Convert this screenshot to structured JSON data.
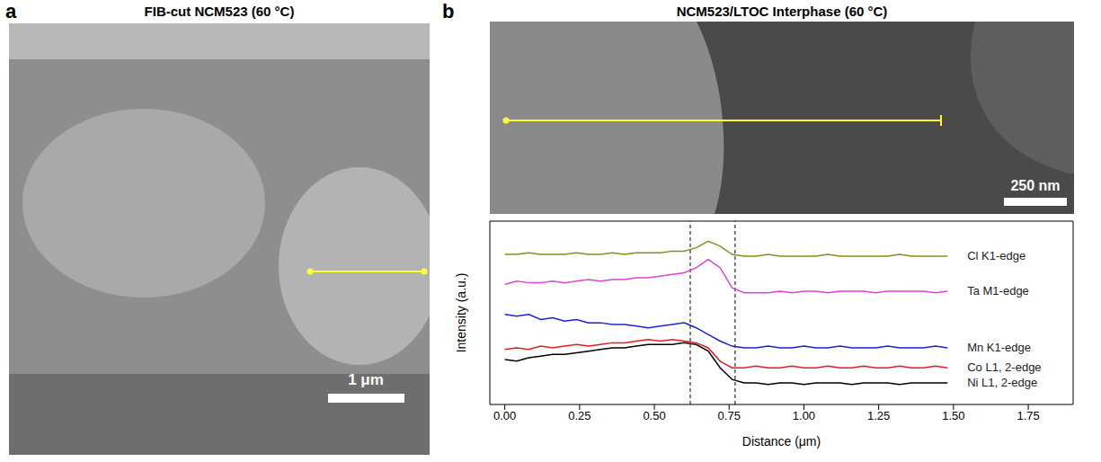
{
  "panels": [
    {
      "letter": "a",
      "title": "FIB-cut NCM523 (60 °C)",
      "scale_bar": "1 μm"
    },
    {
      "letter": "b",
      "title": "NCM523/LTOC Interphase (60 °C)",
      "scale_bar": "250 nm"
    }
  ],
  "chart_data": {
    "type": "line",
    "x_label": "Distance (μm)",
    "y_label": "Intensity (a.u.)",
    "x": [
      0.0,
      0.04,
      0.08,
      0.12,
      0.16,
      0.2,
      0.24,
      0.28,
      0.32,
      0.36,
      0.4,
      0.44,
      0.48,
      0.52,
      0.56,
      0.6,
      0.64,
      0.68,
      0.72,
      0.76,
      0.8,
      0.84,
      0.88,
      0.92,
      0.96,
      1.0,
      1.04,
      1.08,
      1.12,
      1.16,
      1.2,
      1.24,
      1.28,
      1.32,
      1.36,
      1.4,
      1.44,
      1.48
    ],
    "series": [
      {
        "name": "Cl K1-edge",
        "color": "#8c8c1e",
        "values": [
          9.0,
          9.0,
          9.1,
          9.0,
          9.0,
          9.0,
          9.1,
          9.0,
          9.0,
          9.1,
          9.0,
          9.1,
          9.1,
          9.1,
          9.2,
          9.2,
          9.4,
          9.8,
          9.5,
          9.0,
          8.9,
          8.9,
          9.0,
          8.9,
          8.9,
          8.9,
          8.9,
          9.0,
          8.9,
          8.9,
          8.9,
          8.9,
          8.9,
          9.0,
          8.9,
          8.9,
          8.9,
          8.9
        ]
      },
      {
        "name": "Ta M1-edge",
        "color": "#e040e0",
        "values": [
          7.2,
          7.4,
          7.3,
          7.3,
          7.4,
          7.3,
          7.4,
          7.5,
          7.4,
          7.5,
          7.5,
          7.6,
          7.6,
          7.7,
          7.8,
          7.9,
          8.2,
          8.7,
          8.2,
          7.0,
          6.7,
          6.7,
          6.7,
          6.8,
          6.7,
          6.8,
          6.8,
          6.7,
          6.8,
          6.8,
          6.8,
          6.7,
          6.8,
          6.8,
          6.8,
          6.8,
          6.7,
          6.8
        ]
      },
      {
        "name": "Mn K1-edge",
        "color": "#1f1fd6",
        "values": [
          5.4,
          5.3,
          5.4,
          5.1,
          5.2,
          5.0,
          5.1,
          4.9,
          4.9,
          4.8,
          4.8,
          4.7,
          4.6,
          4.7,
          4.8,
          4.9,
          4.6,
          4.2,
          3.8,
          3.5,
          3.4,
          3.4,
          3.5,
          3.4,
          3.4,
          3.5,
          3.4,
          3.4,
          3.5,
          3.4,
          3.4,
          3.4,
          3.5,
          3.4,
          3.4,
          3.4,
          3.5,
          3.4
        ]
      },
      {
        "name": "Co L1, 2-edge",
        "color": "#e02020",
        "values": [
          3.3,
          3.4,
          3.3,
          3.5,
          3.4,
          3.5,
          3.6,
          3.5,
          3.6,
          3.7,
          3.7,
          3.8,
          3.9,
          3.8,
          3.9,
          3.8,
          3.7,
          3.4,
          2.6,
          2.2,
          2.2,
          2.3,
          2.2,
          2.2,
          2.3,
          2.2,
          2.2,
          2.3,
          2.2,
          2.2,
          2.3,
          2.2,
          2.2,
          2.3,
          2.2,
          2.2,
          2.3,
          2.2
        ]
      },
      {
        "name": "Ni L1, 2-edge",
        "color": "#000000",
        "values": [
          2.7,
          2.6,
          2.8,
          2.9,
          3.0,
          3.0,
          3.1,
          3.2,
          3.3,
          3.4,
          3.4,
          3.5,
          3.6,
          3.6,
          3.6,
          3.7,
          3.6,
          3.2,
          2.2,
          1.5,
          1.3,
          1.3,
          1.2,
          1.3,
          1.3,
          1.2,
          1.3,
          1.3,
          1.3,
          1.2,
          1.3,
          1.3,
          1.3,
          1.2,
          1.3,
          1.3,
          1.3,
          1.3
        ]
      }
    ],
    "xlim": [
      -0.05,
      1.9
    ],
    "xticks": [
      {
        "value": 0,
        "label": "0.00"
      },
      {
        "value": 0.25,
        "label": "0.25"
      },
      {
        "value": 0.5,
        "label": "0.50"
      },
      {
        "value": 0.75,
        "label": "0.75"
      },
      {
        "value": 1.0,
        "label": "1.00"
      },
      {
        "value": 1.25,
        "label": "1.25"
      },
      {
        "value": 1.5,
        "label": "1.50"
      },
      {
        "value": 1.75,
        "label": "1.75"
      }
    ],
    "ylim": [
      0,
      11
    ],
    "tick_labels": "x",
    "interface_lines": [
      0.62,
      0.77
    ]
  }
}
